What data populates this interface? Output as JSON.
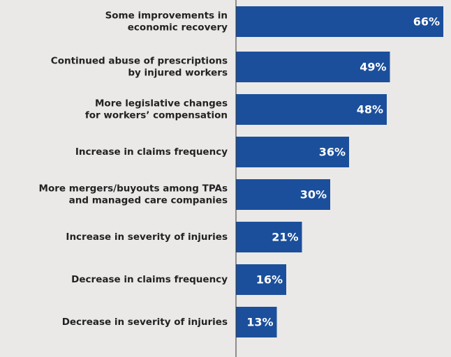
{
  "chart_data": {
    "type": "barh",
    "categories": [
      [
        "Some improvements in",
        "economic recovery"
      ],
      [
        "Continued abuse of prescriptions",
        "by injured workers"
      ],
      [
        "More legislative changes",
        "for workers’ compensation"
      ],
      [
        "Increase in claims frequency"
      ],
      [
        "More mergers/buyouts among TPAs",
        "and managed care companies"
      ],
      [
        "Increase in severity of injuries"
      ],
      [
        "Decrease in claims frequency"
      ],
      [
        "Decrease in severity of injuries"
      ]
    ],
    "values": [
      66,
      49,
      48,
      36,
      30,
      21,
      16,
      13
    ],
    "value_labels": [
      "66%",
      "49%",
      "48%",
      "36%",
      "30%",
      "21%",
      "16%",
      "13%"
    ],
    "color": "#1b4f9b",
    "xlim": [
      0,
      68
    ]
  }
}
